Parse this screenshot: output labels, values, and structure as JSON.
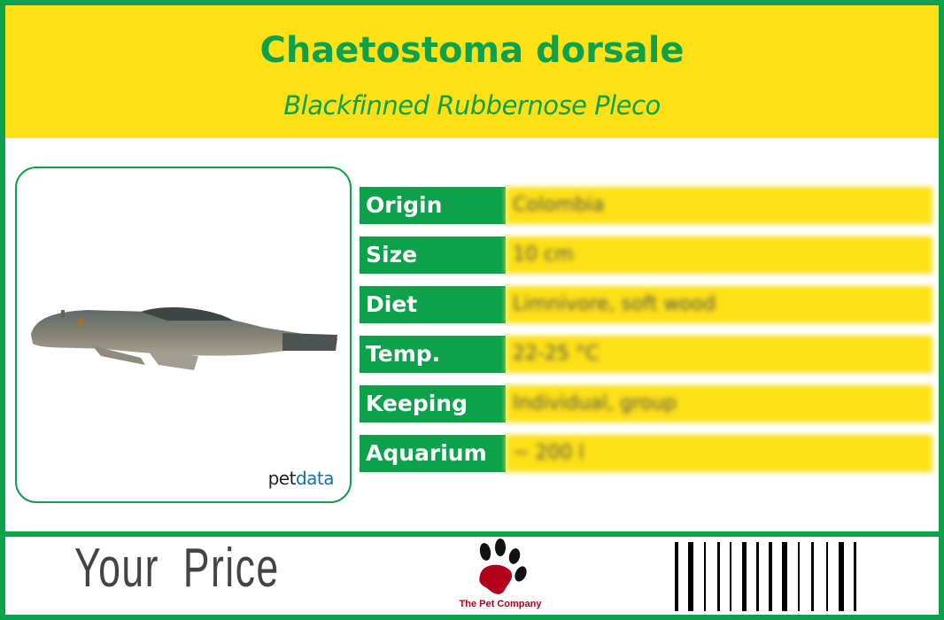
{
  "header": {
    "title": "Chaetostoma dorsale",
    "subtitle": "Blackfinned Rubbernose Pleco"
  },
  "photo": {
    "subject": "fish-image",
    "logo_part1": "pet",
    "logo_part2": "data"
  },
  "facts": [
    {
      "label": "Origin",
      "value": "Colombia"
    },
    {
      "label": "Size",
      "value": "10 cm"
    },
    {
      "label": "Diet",
      "value": "Limnivore, soft wood"
    },
    {
      "label": "Temp.",
      "value": "22-25 °C"
    },
    {
      "label": "Keeping",
      "value": "Individual, group"
    },
    {
      "label": "Aquarium",
      "value": "~ 200 l"
    }
  ],
  "footer": {
    "price_label": "Your Price",
    "company": "The Pet Company"
  },
  "colors": {
    "green": "#0ca14a",
    "yellow": "#fde016",
    "red": "#b3001b"
  }
}
